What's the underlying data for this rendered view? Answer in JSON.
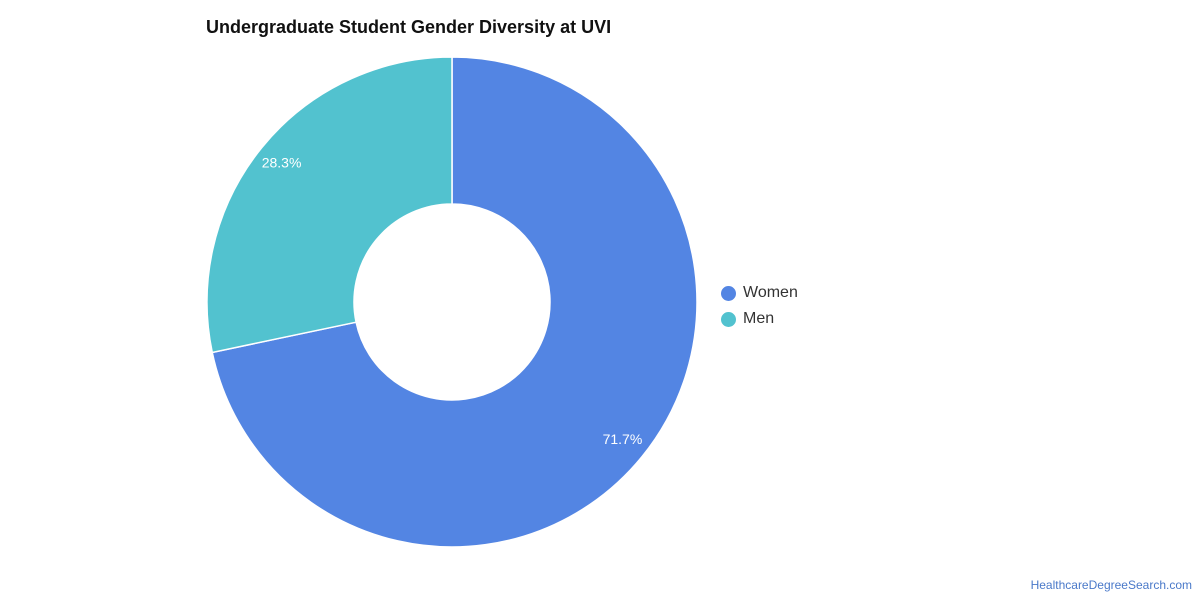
{
  "chart_data": {
    "type": "pie",
    "title": "Undergraduate Student Gender Diversity at UVI",
    "style": "donut",
    "slices": [
      {
        "name": "Women",
        "value": 71.7,
        "label": "71.7%",
        "color": "#5385e3"
      },
      {
        "name": "Men",
        "value": 28.3,
        "label": "28.3%",
        "color": "#52c2cf"
      }
    ],
    "legend_position": "right"
  },
  "footer": {
    "credit": "HealthcareDegreeSearch.com"
  }
}
